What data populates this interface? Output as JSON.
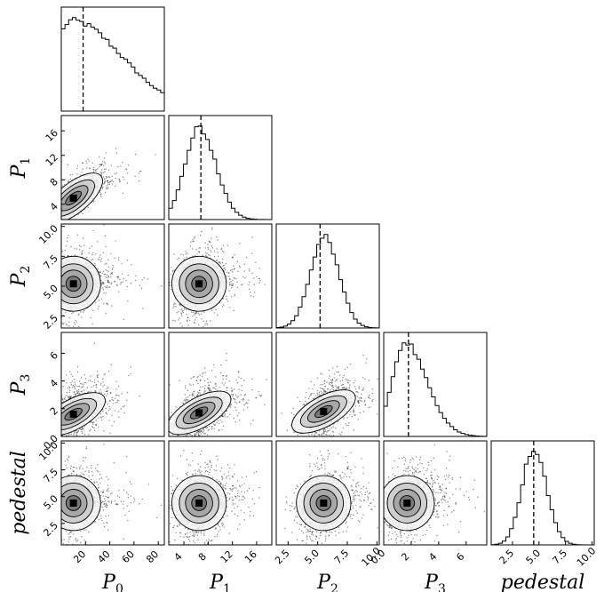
{
  "chart_data": {
    "type": "corner",
    "parameters": [
      {
        "label": "P",
        "sub": "0",
        "range": [
          0,
          85
        ],
        "ticks": [
          20,
          40,
          60,
          80
        ],
        "tick_labels": [
          "20",
          "40",
          "60",
          "80"
        ],
        "median": 18,
        "hist_peak": 8,
        "hist_width": 14,
        "hist_skew": 3
      },
      {
        "label": "P",
        "sub": "1",
        "range": [
          1.5,
          18.5
        ],
        "ticks": [
          4,
          8,
          12,
          16
        ],
        "tick_labels": [
          "4",
          "8",
          "12",
          "16"
        ],
        "median": 6.8,
        "hist_peak": 6.5,
        "hist_width": 2.3,
        "hist_skew": 1.2
      },
      {
        "label": "P",
        "sub": "2",
        "range": [
          1.5,
          10.2
        ],
        "ticks": [
          2.5,
          5.0,
          7.5,
          10.0
        ],
        "tick_labels": [
          "2.5",
          "5.0",
          "7.5",
          "10.0"
        ],
        "median": 5.2,
        "hist_peak": 5.6,
        "hist_width": 1.2,
        "hist_skew": 1.0
      },
      {
        "label": "P",
        "sub": "3",
        "range": [
          0,
          7.5
        ],
        "ticks": [
          0.0,
          2,
          4,
          6
        ],
        "tick_labels": [
          "0.0",
          "2",
          "4",
          "6"
        ],
        "median": 1.8,
        "hist_peak": 1.5,
        "hist_width": 0.9,
        "hist_skew": 1.8
      },
      {
        "label": "pedestal",
        "sub": "",
        "range": [
          0.5,
          10.2
        ],
        "ticks": [
          2.5,
          5.0,
          7.5,
          10.0
        ],
        "tick_labels": [
          "2.5",
          "5.0",
          "7.5",
          "10.0"
        ],
        "median": 4.5,
        "hist_peak": 4.5,
        "hist_width": 1.1,
        "hist_skew": 1.1
      }
    ],
    "panel_centers": {
      "P1|P0": [
        10,
        5
      ],
      "P2|P0": [
        10,
        5.2
      ],
      "P2|P1": [
        6.5,
        5.2
      ],
      "P3|P0": [
        10,
        1.6
      ],
      "P3|P1": [
        6.5,
        1.7
      ],
      "P3|P2": [
        5.5,
        1.8
      ],
      "pedestal|P0": [
        10,
        4.4
      ],
      "pedestal|P1": [
        6.5,
        4.4
      ],
      "pedestal|P2": [
        5.5,
        4.4
      ],
      "pedestal|P3": [
        1.7,
        4.4
      ]
    },
    "hist_style": "step",
    "median_line_style": "dashed",
    "grid": false
  }
}
